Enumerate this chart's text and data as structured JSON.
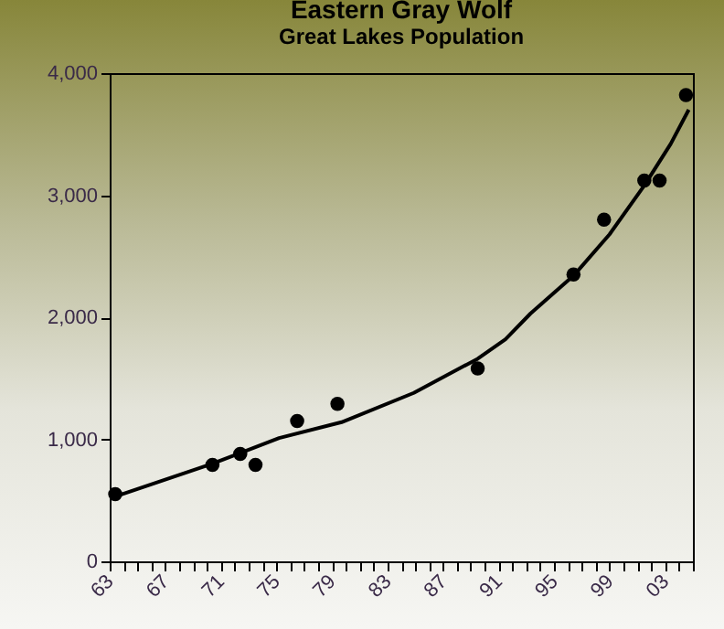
{
  "chart_data": {
    "type": "scatter",
    "title": "Eastern Gray Wolf",
    "subtitle": "Great Lakes Population",
    "grid": false,
    "xlim": [
      1963,
      2005
    ],
    "xticks": [
      {
        "value": 1963,
        "label": "63"
      },
      {
        "value": 1964,
        "label": null
      },
      {
        "value": 1965,
        "label": null
      },
      {
        "value": 1966,
        "label": null
      },
      {
        "value": 1967,
        "label": "67"
      },
      {
        "value": 1968,
        "label": null
      },
      {
        "value": 1969,
        "label": null
      },
      {
        "value": 1970,
        "label": null
      },
      {
        "value": 1971,
        "label": "71"
      },
      {
        "value": 1972,
        "label": null
      },
      {
        "value": 1973,
        "label": null
      },
      {
        "value": 1974,
        "label": null
      },
      {
        "value": 1975,
        "label": "75"
      },
      {
        "value": 1976,
        "label": null
      },
      {
        "value": 1977,
        "label": null
      },
      {
        "value": 1978,
        "label": null
      },
      {
        "value": 1979,
        "label": "79"
      },
      {
        "value": 1980,
        "label": null
      },
      {
        "value": 1981,
        "label": null
      },
      {
        "value": 1982,
        "label": null
      },
      {
        "value": 1983,
        "label": "83"
      },
      {
        "value": 1984,
        "label": null
      },
      {
        "value": 1985,
        "label": null
      },
      {
        "value": 1986,
        "label": null
      },
      {
        "value": 1987,
        "label": "87"
      },
      {
        "value": 1988,
        "label": null
      },
      {
        "value": 1989,
        "label": null
      },
      {
        "value": 1990,
        "label": null
      },
      {
        "value": 1991,
        "label": "91"
      },
      {
        "value": 1992,
        "label": null
      },
      {
        "value": 1993,
        "label": null
      },
      {
        "value": 1994,
        "label": null
      },
      {
        "value": 1995,
        "label": "95"
      },
      {
        "value": 1996,
        "label": null
      },
      {
        "value": 1997,
        "label": null
      },
      {
        "value": 1998,
        "label": null
      },
      {
        "value": 1999,
        "label": "99"
      },
      {
        "value": 2000,
        "label": null
      },
      {
        "value": 2001,
        "label": null
      },
      {
        "value": 2002,
        "label": null
      },
      {
        "value": 2003,
        "label": "03"
      },
      {
        "value": 2004,
        "label": null
      },
      {
        "value": 2005,
        "label": null
      }
    ],
    "ylim": [
      0,
      4000
    ],
    "yticks": [
      {
        "value": 0,
        "label": "0"
      },
      {
        "value": 1000,
        "label": "1,000"
      },
      {
        "value": 2000,
        "label": "2,000"
      },
      {
        "value": 3000,
        "label": "3,000"
      },
      {
        "value": 4000,
        "label": "4,000"
      }
    ],
    "series": [
      {
        "type": "scatter",
        "marker": "circle",
        "color": "#000000",
        "x": [
          1963.4,
          1970.4,
          1972.4,
          1973.5,
          1976.5,
          1979.4,
          1989.5,
          1996.4,
          1998.6,
          2001.5,
          2002.6,
          2004.5
        ],
        "values": [
          550,
          790,
          880,
          790,
          1150,
          1290,
          1580,
          2350,
          2800,
          3120,
          3120,
          3820
        ]
      },
      {
        "type": "line",
        "marker": "none",
        "color": "#000000",
        "x": [
          1963.1,
          1970.4,
          1975.2,
          1979.7,
          1984.9,
          1989.5,
          1991.5,
          1993.3,
          1996.4,
          1999.0,
          2001.5,
          2003.4,
          2004.7
        ],
        "values": [
          520,
          800,
          1010,
          1140,
          1380,
          1660,
          1820,
          2030,
          2340,
          2680,
          3080,
          3420,
          3700
        ]
      }
    ]
  }
}
